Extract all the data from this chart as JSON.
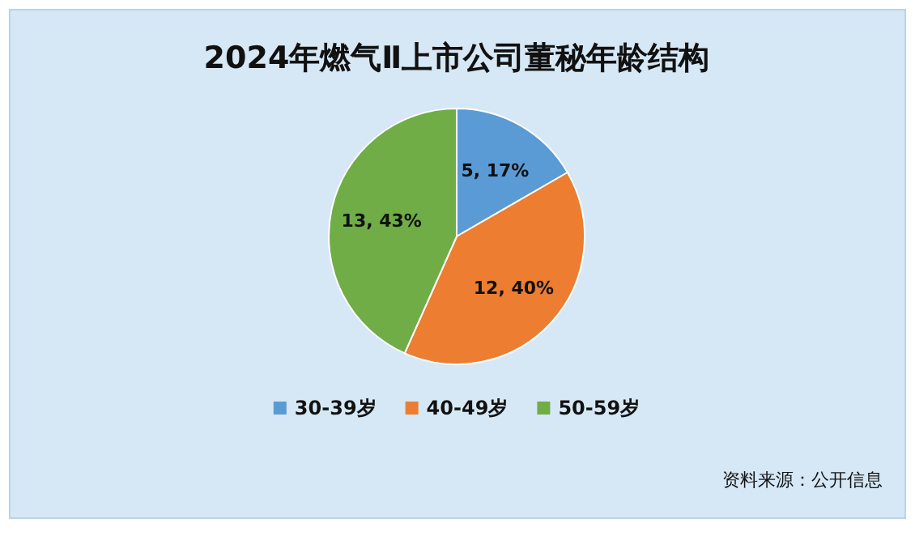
{
  "chart_data": {
    "type": "pie",
    "title": "2024年燃气Ⅱ上市公司董秘年龄结构",
    "categories": [
      "30-39岁",
      "40-49岁",
      "50-59岁"
    ],
    "values": [
      5,
      12,
      13
    ],
    "colors": [
      "#5b9bd5",
      "#ed7d31",
      "#70ad47"
    ],
    "value_labels": [
      "5, 17%",
      "12, 40%",
      "13, 43%"
    ],
    "legend": "bottom",
    "annotations": [
      "资料来源：公开信息"
    ]
  }
}
